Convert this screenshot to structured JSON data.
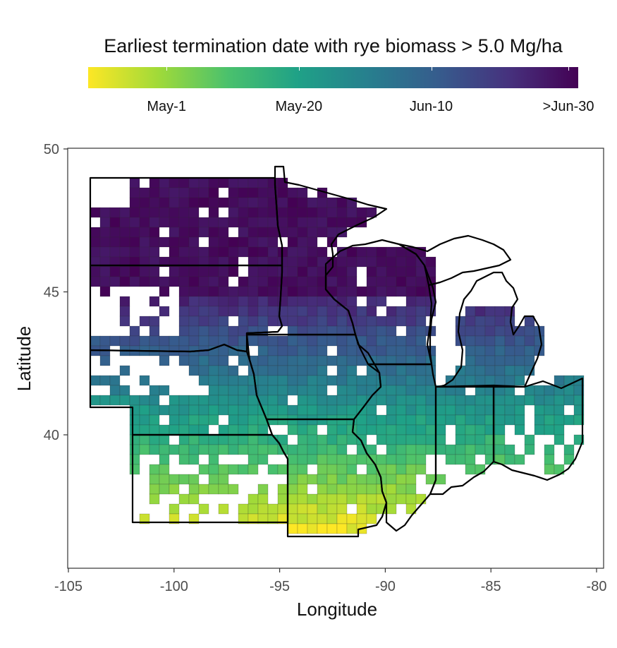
{
  "legend": {
    "title": "Earliest termination date with rye biomass > 5.0 Mg/ha",
    "ticks": [
      "May-1",
      "May-20",
      "Jun-10",
      ">Jun-30"
    ],
    "tick_positions": [
      0.16,
      0.43,
      0.7,
      0.98
    ],
    "colors": [
      "#fde725",
      "#a0da39",
      "#4ac16d",
      "#1fa187",
      "#277f8e",
      "#365c8d",
      "#46327e",
      "#440154"
    ]
  },
  "chart_data": {
    "type": "map",
    "xlabel": "Longitude",
    "ylabel": "Latitude",
    "xlim": [
      -105,
      -80
    ],
    "ylim": [
      36,
      50
    ],
    "xticks": [
      -105,
      -100,
      -95,
      -90,
      -85,
      -80
    ],
    "yticks": [
      40,
      45,
      50
    ],
    "grid": false,
    "color_scale": "viridis",
    "colorbar_labels": [
      "May-1",
      "May-20",
      "Jun-10",
      ">Jun-30"
    ],
    "region_trend": "Latest dates (>Jun-30) in ND, MN, northern SD, WI and northern MI; earliest dates (around May-1) in south-central KS, southern MO and southern IL"
  }
}
